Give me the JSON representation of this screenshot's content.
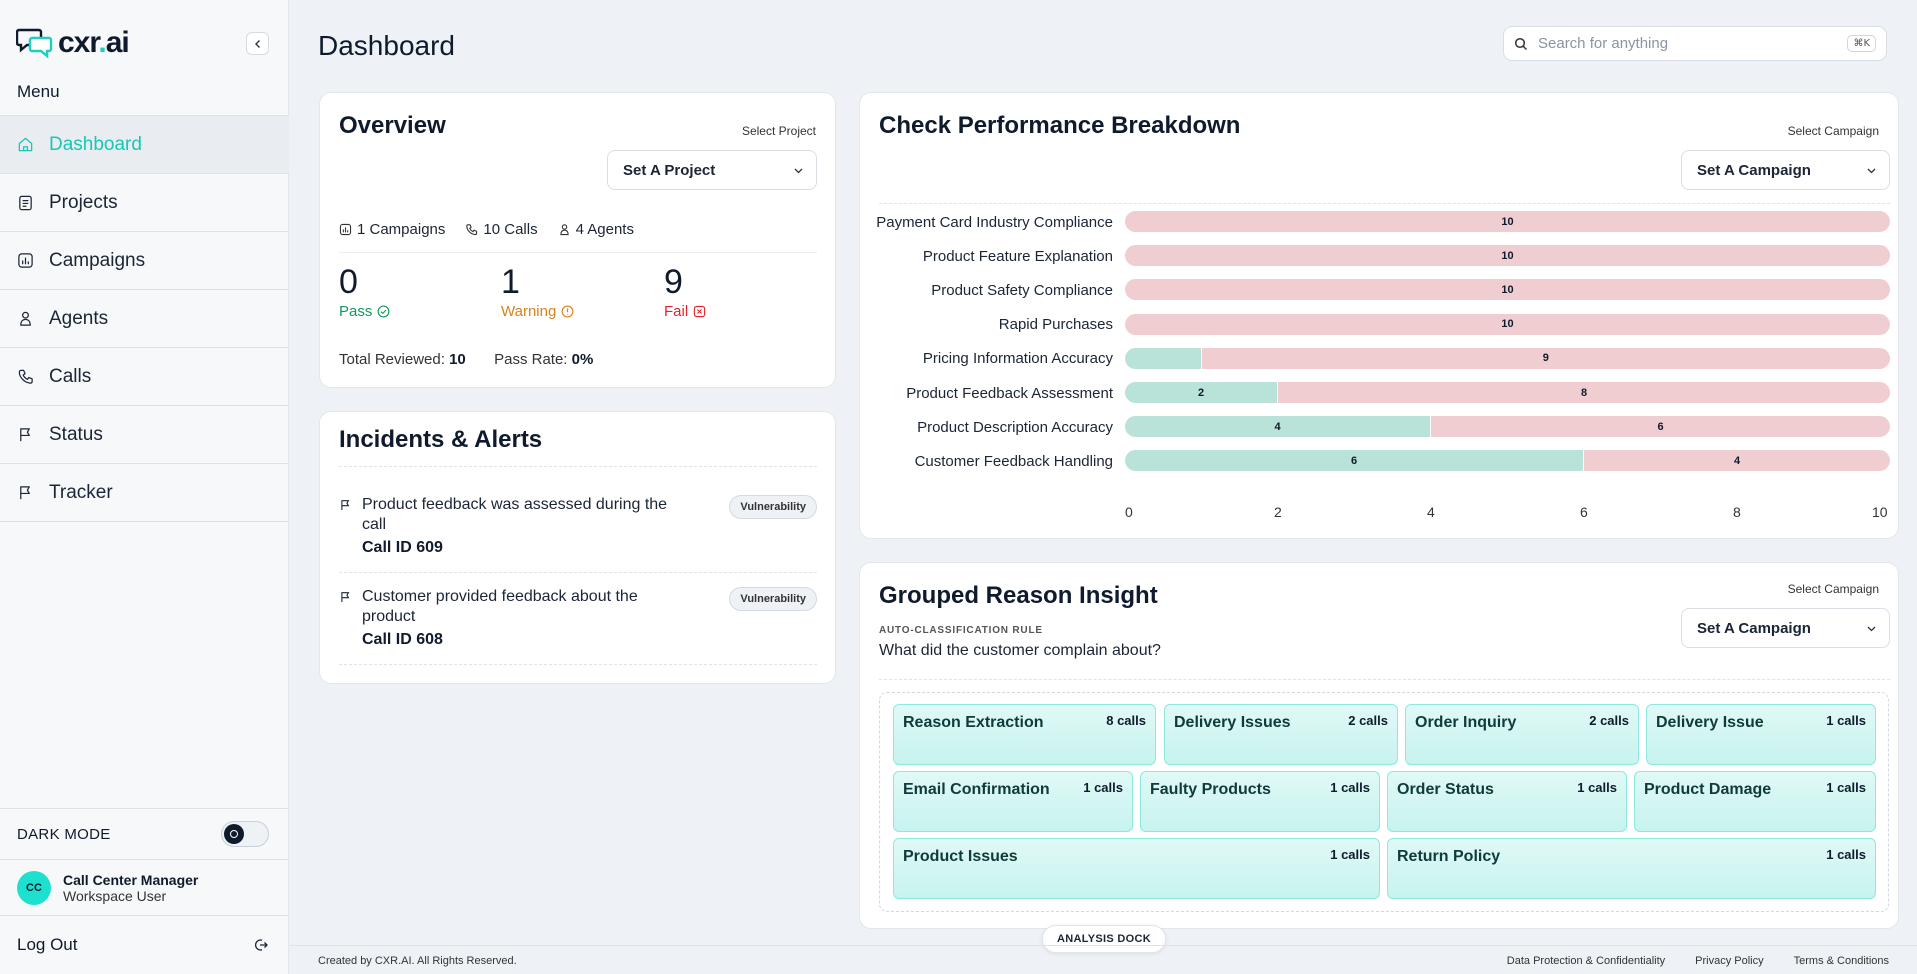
{
  "app": {
    "logo_text": "cxr",
    "logo_dot": ".",
    "logo_suffix": "ai"
  },
  "sidebar": {
    "menu_title": "Menu",
    "items": [
      {
        "label": "Dashboard",
        "icon": "home-icon",
        "active": true
      },
      {
        "label": "Projects",
        "icon": "clipboard-icon"
      },
      {
        "label": "Campaigns",
        "icon": "chart-icon"
      },
      {
        "label": "Agents",
        "icon": "user-icon"
      },
      {
        "label": "Calls",
        "icon": "phone-icon"
      },
      {
        "label": "Status",
        "icon": "flag-icon"
      },
      {
        "label": "Tracker",
        "icon": "flag-icon"
      }
    ],
    "dark_mode_label": "DARK MODE",
    "user": {
      "initials": "CC",
      "name": "Call Center Manager",
      "role": "Workspace User"
    },
    "logout_label": "Log Out"
  },
  "header": {
    "title": "Dashboard",
    "search_placeholder": "Search for anything",
    "shortcut": "⌘K"
  },
  "overview": {
    "title": "Overview",
    "select_label": "Select Project",
    "dropdown_value": "Set A Project",
    "campaigns": "1 Campaigns",
    "calls": "10 Calls",
    "agents": "4 Agents",
    "pass": {
      "value": "0",
      "label": "Pass",
      "color": "#0f9a5a"
    },
    "warning": {
      "value": "1",
      "label": "Warning",
      "color": "#d9821b"
    },
    "fail": {
      "value": "9",
      "label": "Fail",
      "color": "#e0242e"
    },
    "total_reviewed_label": "Total Reviewed:",
    "total_reviewed_value": "10",
    "pass_rate_label": "Pass Rate:",
    "pass_rate_value": "0%"
  },
  "incidents": {
    "title": "Incidents & Alerts",
    "items": [
      {
        "text": "Product feedback was assessed during the call",
        "call_id": "Call ID 609",
        "badge": "Vulnerability"
      },
      {
        "text": "Customer provided feedback about the product",
        "call_id": "Call ID 608",
        "badge": "Vulnerability"
      }
    ]
  },
  "performance": {
    "title": "Check Performance Breakdown",
    "select_label": "Select Campaign",
    "dropdown_value": "Set A Campaign"
  },
  "chart_data": {
    "type": "bar",
    "orientation": "horizontal",
    "stacked": true,
    "categories": [
      "Payment Card Industry Compliance",
      "Product Feature Explanation",
      "Product Safety Compliance",
      "Rapid Purchases",
      "Pricing Information Accuracy",
      "Product Feedback Assessment",
      "Product Description Accuracy",
      "Customer Feedback Handling"
    ],
    "series": [
      {
        "values": [
          0,
          0,
          0,
          0,
          1,
          2,
          4,
          6
        ],
        "color": "#b9e2d8"
      },
      {
        "values": [
          10,
          10,
          10,
          10,
          9,
          8,
          6,
          4
        ],
        "color": "#f0cdd0"
      }
    ],
    "xlim": [
      0,
      10
    ],
    "xticks": [
      0,
      2,
      4,
      6,
      8,
      10
    ],
    "grid": false
  },
  "grouped": {
    "title": "Grouped Reason Insight",
    "rule_tag": "AUTO-CLASSIFICATION RULE",
    "question": "What did the customer complain about?",
    "select_label": "Select Campaign",
    "dropdown_value": "Set A Campaign",
    "chips": [
      {
        "name": "Reason Extraction",
        "count": "8 calls"
      },
      {
        "name": "Delivery Issues",
        "count": "2 calls"
      },
      {
        "name": "Order Inquiry",
        "count": "2 calls"
      },
      {
        "name": "Delivery Issue",
        "count": "1 calls"
      },
      {
        "name": "Email Confirmation",
        "count": "1 calls"
      },
      {
        "name": "Faulty Products",
        "count": "1 calls"
      },
      {
        "name": "Order Status",
        "count": "1 calls"
      },
      {
        "name": "Product Damage",
        "count": "1 calls"
      },
      {
        "name": "Product Issues",
        "count": "1 calls"
      },
      {
        "name": "Return Policy",
        "count": "1 calls"
      }
    ]
  },
  "footer": {
    "copyright": "Created by CXR.AI. All Rights Reserved.",
    "dock": "ANALYSIS DOCK",
    "links": [
      "Data Protection & Confidentiality",
      "Privacy Policy",
      "Terms & Conditions"
    ]
  }
}
